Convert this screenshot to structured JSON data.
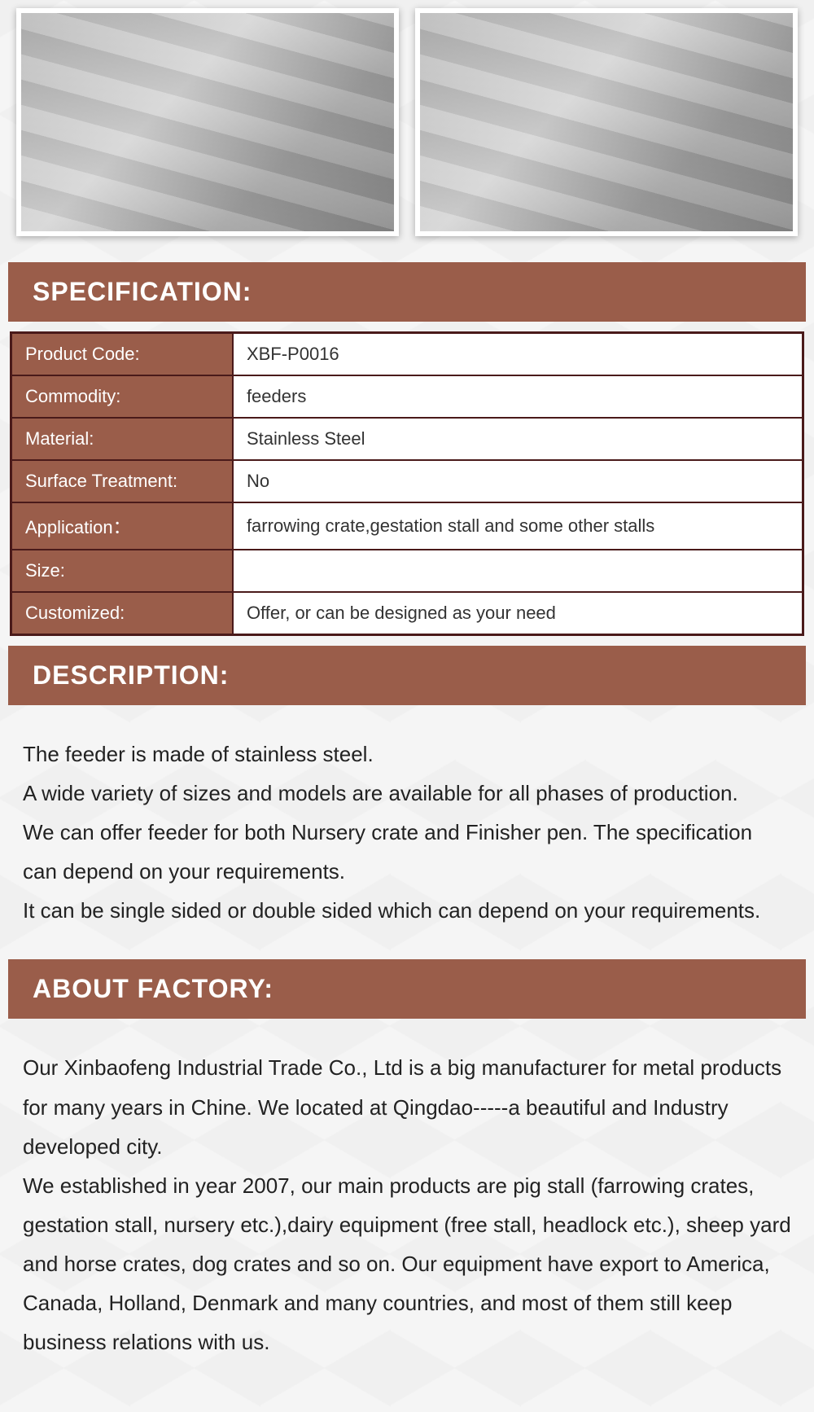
{
  "colors": {
    "header_bg": "#9a5d4a",
    "header_text": "#ffffff",
    "table_border": "#4a1a1a",
    "table_label_bg": "#9a5d4a",
    "table_value_bg": "#ffffff",
    "body_text": "#222222"
  },
  "sections": {
    "specification": {
      "title": "SPECIFICATION:",
      "rows": [
        {
          "label": "Product Code:",
          "value": "XBF-P0016"
        },
        {
          "label": "Commodity:",
          "value": "feeders"
        },
        {
          "label": "Material:",
          "value": "Stainless Steel"
        },
        {
          "label": "Surface Treatment:",
          "value": "No"
        },
        {
          "label": "Application：",
          "value": "farrowing crate,gestation stall and some other stalls"
        },
        {
          "label": "Size:",
          "value": ""
        },
        {
          "label": "Customized:",
          "value": "Offer, or can be designed as your need"
        }
      ]
    },
    "description": {
      "title": "DESCRIPTION:",
      "para1": "The feeder is made of stainless steel.",
      "para2": "A wide variety of sizes and models are available for all phases of production.",
      "para3": "We can offer feeder for both Nursery crate and Finisher pen. The specification can depend on your requirements.",
      "para4": "It can be single sided or double sided which can depend on your requirements."
    },
    "factory": {
      "title": "ABOUT FACTORY:",
      "para1": "Our Xinbaofeng Industrial Trade Co., Ltd is a big manufacturer for metal products for many years in Chine. We located at Qingdao-----a beautiful and Industry developed city.",
      "para2": "We established in year 2007, our main products are pig stall (farrowing crates, gestation stall, nursery etc.),dairy equipment (free stall, headlock etc.), sheep yard and horse crates, dog crates and so on. Our equipment have export to America, Canada, Holland, Denmark and many countries, and most of them still keep business relations with us."
    }
  }
}
